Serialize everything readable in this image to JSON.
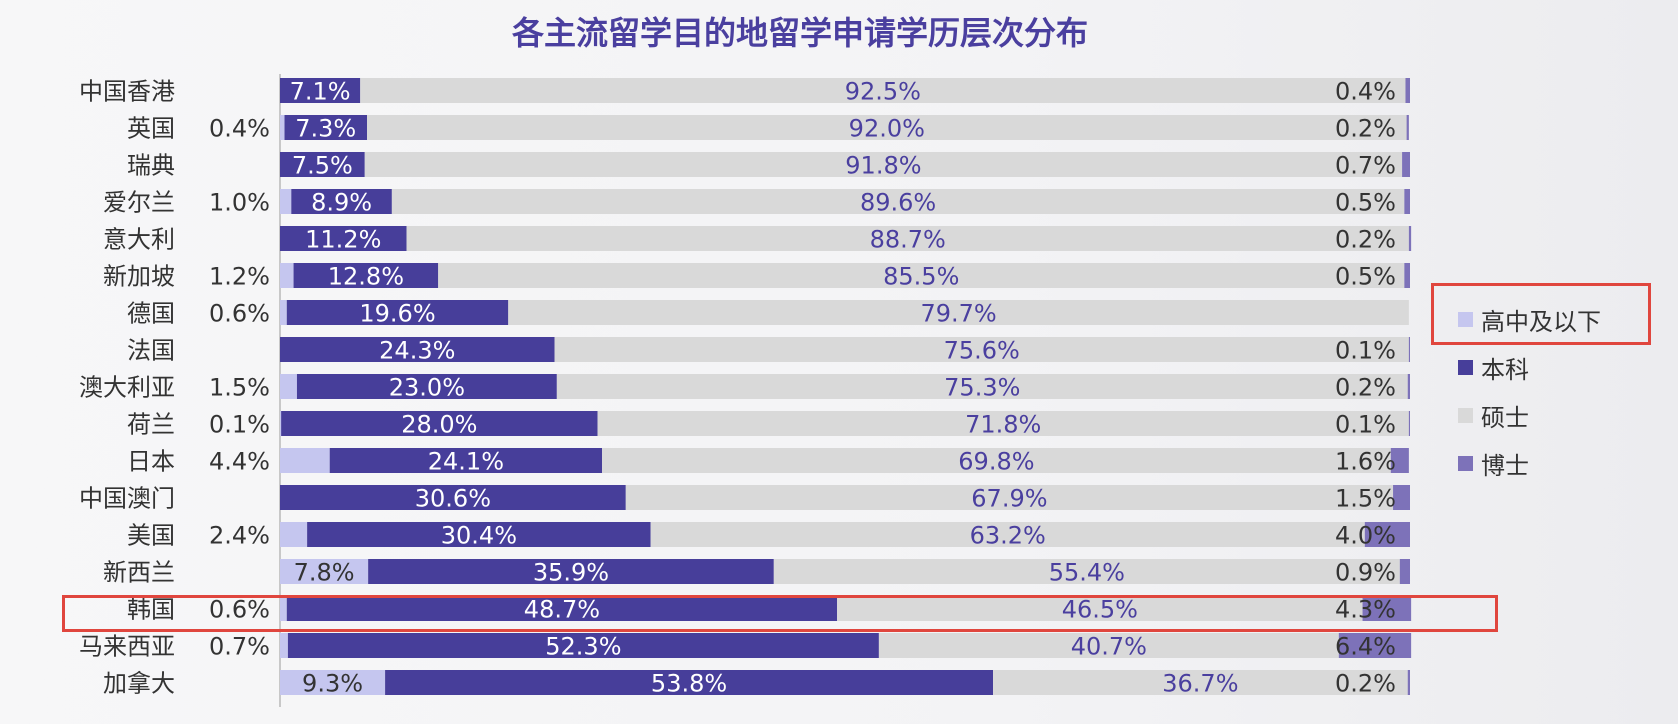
{
  "chart_data": {
    "type": "bar",
    "stacked": true,
    "orientation": "horizontal",
    "title": "各主流留学目的地留学申请学历层次分布",
    "categories": [
      "中国香港",
      "英国",
      "瑞典",
      "爱尔兰",
      "意大利",
      "新加坡",
      "德国",
      "法国",
      "澳大利亚",
      "荷兰",
      "日本",
      "中国澳门",
      "美国",
      "新西兰",
      "韩国",
      "马来西亚",
      "加拿大"
    ],
    "series": [
      {
        "name": "高中及以下",
        "color": "#c5c6ef",
        "values": [
          0,
          0.4,
          0,
          1.0,
          0,
          1.2,
          0.6,
          0,
          1.5,
          0.1,
          4.4,
          0,
          2.4,
          7.8,
          0.6,
          0.7,
          9.3
        ],
        "labels": [
          "",
          "0.4%",
          "",
          "1.0%",
          "",
          "1.2%",
          "0.6%",
          "",
          "1.5%",
          "0.1%",
          "4.4%",
          "",
          "2.4%",
          "7.8%",
          "0.6%",
          "0.7%",
          "9.3%"
        ]
      },
      {
        "name": "本科",
        "color": "#473e9a",
        "values": [
          7.1,
          7.3,
          7.5,
          8.9,
          11.2,
          12.8,
          19.6,
          24.3,
          23.0,
          28.0,
          24.1,
          30.6,
          30.4,
          35.9,
          48.7,
          52.3,
          53.8
        ],
        "labels": [
          "7.1%",
          "7.3%",
          "7.5%",
          "8.9%",
          "11.2%",
          "12.8%",
          "19.6%",
          "24.3%",
          "23.0%",
          "28.0%",
          "24.1%",
          "30.6%",
          "30.4%",
          "35.9%",
          "48.7%",
          "52.3%",
          "53.8%"
        ]
      },
      {
        "name": "硕士",
        "color": "#d9d9d9",
        "values": [
          92.5,
          92.0,
          91.8,
          89.6,
          88.7,
          85.5,
          79.7,
          75.6,
          75.3,
          71.8,
          69.8,
          67.9,
          63.2,
          55.4,
          46.5,
          40.7,
          36.7
        ],
        "labels": [
          "92.5%",
          "92.0%",
          "91.8%",
          "89.6%",
          "88.7%",
          "85.5%",
          "79.7%",
          "75.6%",
          "75.3%",
          "71.8%",
          "69.8%",
          "67.9%",
          "63.2%",
          "55.4%",
          "46.5%",
          "40.7%",
          "36.7%"
        ]
      },
      {
        "name": "博士",
        "color": "#7d72b9",
        "values": [
          0.4,
          0.2,
          0.7,
          0.5,
          0.2,
          0.5,
          0,
          0.1,
          0.2,
          0.1,
          1.6,
          1.5,
          4.0,
          0.9,
          4.3,
          6.4,
          0.2
        ],
        "labels": [
          "0.4%",
          "0.2%",
          "0.7%",
          "0.5%",
          "0.2%",
          "0.5%",
          "",
          "0.1%",
          "0.2%",
          "0.1%",
          "1.6%",
          "1.5%",
          "4.0%",
          "0.9%",
          "4.3%",
          "6.4%",
          "0.2%"
        ]
      }
    ],
    "xlim": [
      0,
      100
    ],
    "legend_position": "right",
    "highlighted_category": "韩国",
    "highlighted_legend": "高中及以下"
  }
}
